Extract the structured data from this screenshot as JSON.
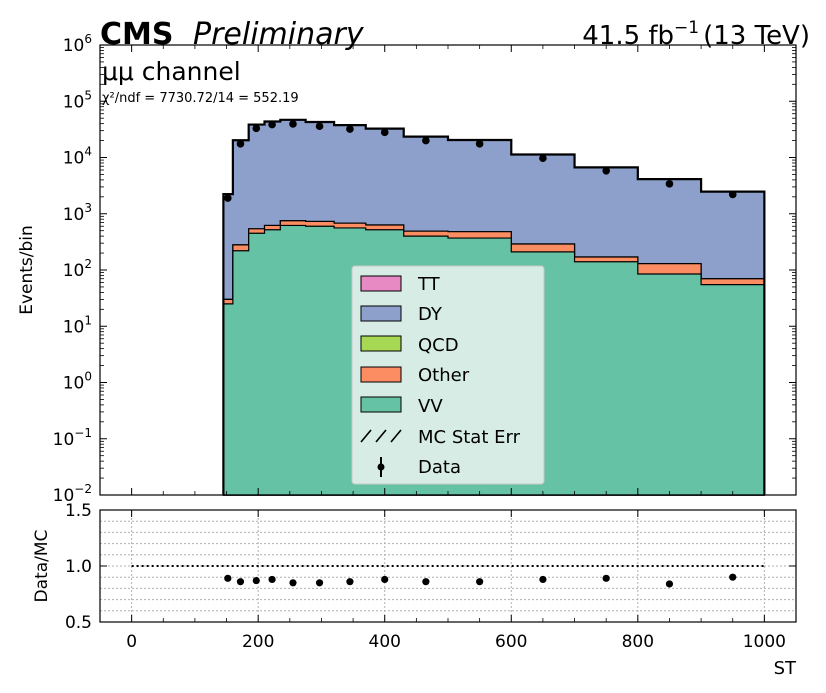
{
  "header": {
    "experiment": "CMS",
    "status": "Preliminary",
    "lumi_value": "41.5 fb",
    "lumi_exp": "−1",
    "energy": "(13 TeV)",
    "channel": "μμ channel",
    "chi2": "χ²/ndf = 7730.72/14 = 552.19"
  },
  "colors": {
    "TT": "#e78ac3",
    "DY": "#8da0cb",
    "QCD": "#a6d854",
    "Other": "#fc8d62",
    "VV": "#66c2a5",
    "legend_bg": "#dff0ea"
  },
  "chart_data": [
    {
      "type": "area",
      "subtype": "stacked-histogram",
      "ylabel": "Events/bin",
      "yscale": "log",
      "ylim": [
        0.01,
        1000000
      ],
      "xlim": [
        -50,
        1050
      ],
      "y_tick_labels": [
        {
          "base": "10",
          "exp": "−2"
        },
        {
          "base": "10",
          "exp": "−1"
        },
        {
          "base": "10",
          "exp": "0"
        },
        {
          "base": "10",
          "exp": "1"
        },
        {
          "base": "10",
          "exp": "2"
        },
        {
          "base": "10",
          "exp": "3"
        },
        {
          "base": "10",
          "exp": "4"
        },
        {
          "base": "10",
          "exp": "5"
        },
        {
          "base": "10",
          "exp": "6"
        }
      ],
      "bin_edges": [
        145,
        160,
        185,
        210,
        235,
        275,
        320,
        370,
        430,
        500,
        600,
        700,
        800,
        900,
        1000
      ],
      "series": [
        {
          "name": "VV",
          "values": [
            25,
            220,
            450,
            520,
            620,
            600,
            560,
            520,
            400,
            370,
            210,
            140,
            85,
            55
          ]
        },
        {
          "name": "Other",
          "values": [
            5,
            60,
            90,
            100,
            130,
            130,
            120,
            110,
            90,
            110,
            80,
            30,
            45,
            15
          ]
        },
        {
          "name": "QCD",
          "values": [
            0,
            0,
            0,
            0,
            0,
            0,
            0,
            0,
            0,
            0,
            0,
            0,
            0,
            0
          ]
        },
        {
          "name": "DY",
          "values": [
            2200,
            20000,
            38000,
            43000,
            46000,
            42000,
            37000,
            32000,
            23000,
            20000,
            11000,
            6500,
            4000,
            2400
          ]
        },
        {
          "name": "TT",
          "values": [
            0,
            0,
            0,
            0,
            0,
            0,
            0,
            0,
            0,
            0,
            0,
            0,
            0,
            0
          ]
        }
      ],
      "data_points": {
        "name": "Data",
        "x": [
          152,
          172,
          197,
          222,
          255,
          297,
          345,
          400,
          465,
          550,
          650,
          750,
          850,
          950
        ],
        "y": [
          1900,
          17500,
          33000,
          38500,
          39500,
          36000,
          32000,
          28000,
          20000,
          17500,
          9700,
          5800,
          3400,
          2200
        ]
      },
      "legend": {
        "position": "lower-center",
        "entries": [
          "TT",
          "DY",
          "QCD",
          "Other",
          "VV",
          "MC Stat Err",
          "Data"
        ]
      }
    },
    {
      "type": "scatter",
      "ylabel": "Data/MC",
      "xlabel": "ST",
      "ylim": [
        0.5,
        1.5
      ],
      "xlim": [
        -50,
        1050
      ],
      "y_tick_labels": [
        "0.5",
        "1.0",
        "1.5"
      ],
      "x_tick_labels": [
        "0",
        "200",
        "400",
        "600",
        "800",
        "1000"
      ],
      "x_ticks": [
        0,
        200,
        400,
        600,
        800,
        1000
      ],
      "grid": true,
      "reference_line": 1.0,
      "x": [
        152,
        172,
        197,
        222,
        255,
        297,
        345,
        400,
        465,
        550,
        650,
        750,
        850,
        950
      ],
      "y": [
        0.89,
        0.86,
        0.87,
        0.88,
        0.85,
        0.85,
        0.86,
        0.88,
        0.86,
        0.86,
        0.88,
        0.89,
        0.84,
        0.9
      ]
    }
  ]
}
